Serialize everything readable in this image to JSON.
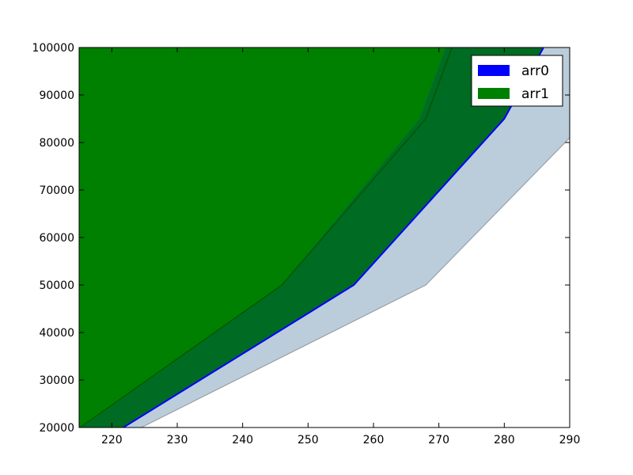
{
  "chart_data": {
    "type": "area",
    "title": "",
    "xlabel": "",
    "ylabel": "",
    "xlim": [
      215,
      290
    ],
    "ylim": [
      20000,
      100000
    ],
    "x_ticks": [
      220,
      230,
      240,
      250,
      260,
      270,
      280,
      290
    ],
    "y_ticks": [
      20000,
      30000,
      40000,
      50000,
      60000,
      70000,
      80000,
      90000,
      100000
    ],
    "grid": false,
    "legend_position": "top-right",
    "series": [
      {
        "name": "arr0",
        "color": "#0000ff",
        "fill_color": "#bbcddb",
        "upper": [
          [
            210,
            10000
          ],
          [
            257,
            50000
          ],
          [
            280,
            85000
          ],
          [
            286,
            100000
          ]
        ],
        "lower": [
          [
            210,
            10000
          ],
          [
            268,
            50000
          ],
          [
            290,
            81000
          ]
        ]
      },
      {
        "name": "arr1",
        "color": "#008000",
        "fill_color": "#006b22",
        "upper": [
          [
            205,
            10000
          ],
          [
            246,
            50000
          ],
          [
            267,
            85000
          ],
          [
            271,
            100000
          ]
        ],
        "lower": [
          [
            210,
            10000
          ],
          [
            257,
            50000
          ],
          [
            280,
            85000
          ],
          [
            286,
            100000
          ]
        ]
      }
    ],
    "green_region_boundary": [
      [
        210,
        15000
      ],
      [
        246,
        50000
      ],
      [
        268,
        85000
      ],
      [
        272,
        100000
      ]
    ]
  }
}
